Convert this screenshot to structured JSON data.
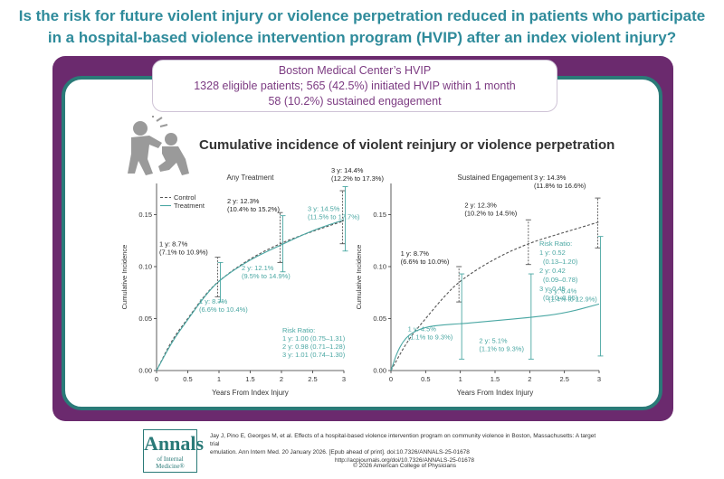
{
  "headline": {
    "line1": "Is the risk for future violent injury or violence perpetration reduced in patients who participate",
    "line2": "in a hospital-based violence intervention program (HVIP) after an index violent injury?"
  },
  "hvip": {
    "title": "Boston Medical Center’s HVIP",
    "line2": "1328 eligible patients; 565 (42.5%) initiated HVIP within 1 month",
    "line3": "58 (10.2%) sustained engagement"
  },
  "subtitle": "Cumulative incidence of violent reinjury or violence perpetration",
  "colors": {
    "control": "#555555",
    "treatment": "#4aa7a3",
    "purple": "#6b2a6e",
    "teal": "#2a7a78",
    "headline": "#2f8b9b"
  },
  "chart_data": [
    {
      "type": "line",
      "title": "Any Treatment",
      "xlabel": "Years From Index Injury",
      "ylabel": "Cumulative Incidence",
      "xlim": [
        0,
        3
      ],
      "ylim": [
        0,
        0.18
      ],
      "xticks": [
        "0",
        "0.5",
        "1",
        "1.5",
        "2",
        "2.5",
        "3"
      ],
      "yticks": [
        "0.00",
        "0.05",
        "0.10",
        "0.15"
      ],
      "legend": {
        "position": "top-left",
        "entries": [
          "Control",
          "Treatment"
        ]
      },
      "series": [
        {
          "name": "Control",
          "style": "dashed",
          "x": [
            0,
            0.25,
            0.5,
            0.75,
            1,
            1.5,
            2,
            2.5,
            3
          ],
          "y": [
            0,
            0.03,
            0.05,
            0.071,
            0.087,
            0.108,
            0.123,
            0.134,
            0.144
          ]
        },
        {
          "name": "Treatment",
          "style": "solid",
          "x": [
            0,
            0.25,
            0.5,
            0.75,
            1,
            1.5,
            2,
            2.5,
            3
          ],
          "y": [
            0,
            0.028,
            0.049,
            0.07,
            0.087,
            0.107,
            0.121,
            0.135,
            0.145
          ]
        }
      ],
      "error_bars": [
        {
          "series": "Control",
          "x": 1,
          "y": 0.087,
          "low": 0.071,
          "high": 0.109
        },
        {
          "series": "Treatment",
          "x": 1,
          "y": 0.087,
          "low": 0.066,
          "high": 0.104
        },
        {
          "series": "Control",
          "x": 2,
          "y": 0.123,
          "low": 0.104,
          "high": 0.152
        },
        {
          "series": "Treatment",
          "x": 2,
          "y": 0.121,
          "low": 0.095,
          "high": 0.149
        },
        {
          "series": "Control",
          "x": 3,
          "y": 0.144,
          "low": 0.122,
          "high": 0.173
        },
        {
          "series": "Treatment",
          "x": 3,
          "y": 0.145,
          "low": 0.115,
          "high": 0.177
        }
      ],
      "annotations": {
        "control": [
          {
            "l1": "1 y: 8.7%",
            "l2": "(7.1% to 10.9%)"
          },
          {
            "l1": "2 y: 12.3%",
            "l2": "(10.4% to 15.2%)"
          },
          {
            "l1": "3 y: 14.4%",
            "l2": "(12.2% to 17.3%)"
          }
        ],
        "treatment": [
          {
            "l1": "1 y: 8.7%",
            "l2": "(6.6% to 10.4%)"
          },
          {
            "l1": "2 y: 12.1%",
            "l2": "(9.5% to 14.9%)"
          },
          {
            "l1": "3 y: 14.5%",
            "l2": "(11.5% to 17.7%)"
          }
        ],
        "risk_ratio_title": "Risk Ratio:",
        "risk_ratio": [
          "1 y: 1.00 (0.75–1.31)",
          "2 y: 0.98 (0.71–1.28)",
          "3 y: 1.01 (0.74–1.30)"
        ]
      }
    },
    {
      "type": "line",
      "title": "Sustained Engagement",
      "xlabel": "Years From Index Injury",
      "ylabel": "Cumulative Incidence",
      "xlim": [
        0,
        3
      ],
      "ylim": [
        0,
        0.18
      ],
      "xticks": [
        "0",
        "0.5",
        "1",
        "1.5",
        "2",
        "2.5",
        "3"
      ],
      "yticks": [
        "0.00",
        "0.05",
        "0.10",
        "0.15"
      ],
      "series": [
        {
          "name": "Control",
          "style": "dashed",
          "x": [
            0,
            0.25,
            0.5,
            0.75,
            1,
            1.5,
            2,
            2.5,
            3
          ],
          "y": [
            0,
            0.03,
            0.05,
            0.07,
            0.087,
            0.108,
            0.123,
            0.133,
            0.143
          ]
        },
        {
          "name": "Treatment",
          "style": "solid",
          "x": [
            0,
            0.1,
            0.25,
            0.5,
            0.75,
            1,
            1.5,
            2,
            2.5,
            3
          ],
          "y": [
            0,
            0.02,
            0.035,
            0.042,
            0.044,
            0.045,
            0.048,
            0.051,
            0.055,
            0.064
          ]
        }
      ],
      "error_bars": [
        {
          "series": "Control",
          "x": 1,
          "y": 0.087,
          "low": 0.066,
          "high": 0.1
        },
        {
          "series": "Treatment",
          "x": 1,
          "y": 0.045,
          "low": 0.011,
          "high": 0.093
        },
        {
          "series": "Control",
          "x": 2,
          "y": 0.123,
          "low": 0.102,
          "high": 0.145
        },
        {
          "series": "Treatment",
          "x": 2,
          "y": 0.051,
          "low": 0.011,
          "high": 0.093
        },
        {
          "series": "Control",
          "x": 3,
          "y": 0.143,
          "low": 0.118,
          "high": 0.166
        },
        {
          "series": "Treatment",
          "x": 3,
          "y": 0.064,
          "low": 0.014,
          "high": 0.129
        }
      ],
      "annotations": {
        "control": [
          {
            "l1": "1 y: 8.7%",
            "l2": "(6.6% to 10.0%)"
          },
          {
            "l1": "2 y: 12.3%",
            "l2": "(10.2% to 14.5%)"
          },
          {
            "l1": "3 y: 14.3%",
            "l2": "(11.8% to 16.6%)"
          }
        ],
        "treatment": [
          {
            "l1": "1 y: 4.5%",
            "l2": "(1.1% to 9.3%)"
          },
          {
            "l1": "2 y: 5.1%",
            "l2": "(1.1% to 9.3%)"
          },
          {
            "l1": "3 y: 6.4%",
            "l2": "(1.4% to 12.9%)"
          }
        ],
        "risk_ratio_title": "Risk Ratio:",
        "risk_ratio": [
          "1 y: 0.52",
          "(0.13–1.20)",
          "2 y: 0.42",
          "(0.09–0.78)",
          "3 y: 0.45",
          "(0.10–0.95)"
        ]
      }
    }
  ],
  "footer": {
    "logo_big": "Annals",
    "logo_small": "of Internal Medicine®",
    "citation1": "Jay J, Pino E, Georges M, et al. Effects of a hospital-based violence intervention program on community violence in Boston, Massachusetts: A target trial",
    "citation2": "emulation. Ann Intern Med. 20 January 2026. [Epub ahead of print]. doi:10.7326/ANNALS-25-01678",
    "citation3": "http://acpjournals.org/doi/10.7326/ANNALS-25-01678",
    "copyright": "© 2026 American College of Physicians"
  }
}
